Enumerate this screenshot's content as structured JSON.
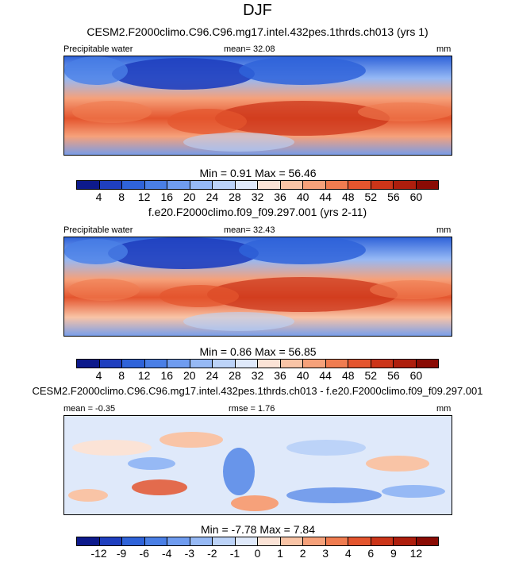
{
  "title": "DJF",
  "panels": [
    {
      "subtitle": "CESM2.F2000climo.C96.C96.mg17.intel.432pes.1thrds.ch013 (yrs 1)",
      "left_label": "Precipitable water",
      "center_label": "mean=  32.08",
      "right_label": "mm",
      "minmax": "Min =   0.91 Max =  56.46",
      "cbar_key": "full"
    },
    {
      "subtitle": "f.e20.F2000climo.f09_f09.297.001 (yrs 2-11)",
      "left_label": "Precipitable water",
      "center_label": "mean=  32.43",
      "right_label": "mm",
      "minmax": "Min =   0.86 Max =  56.85",
      "cbar_key": "full"
    },
    {
      "subtitle": "CESM2.F2000climo.C96.C96.mg17.intel.432pes.1thrds.ch013 - f.e20.F2000climo.f09_f09.297.001",
      "left_label": "mean =  -0.35",
      "center_label": "rmse =   1.76",
      "right_label": "mm",
      "minmax": "Min =  -7.78 Max =   7.84",
      "cbar_key": "diff"
    }
  ],
  "colorbars": {
    "full": {
      "ticks": [
        "4",
        "8",
        "12",
        "16",
        "20",
        "24",
        "28",
        "32",
        "36",
        "40",
        "44",
        "48",
        "52",
        "56",
        "60"
      ],
      "colors": [
        "#0d1a8c",
        "#1f3fbf",
        "#2f63d9",
        "#4a7fe6",
        "#6f9cf0",
        "#96b9f5",
        "#bcd3f8",
        "#dfe9fa",
        "#fbe3d6",
        "#f9c4a6",
        "#f6a17a",
        "#f07c50",
        "#e4552e",
        "#cc3519",
        "#ae1e0d",
        "#8a0b04"
      ]
    },
    "diff": {
      "ticks": [
        "-12",
        "-9",
        "-6",
        "-4",
        "-3",
        "-2",
        "-1",
        "0",
        "1",
        "2",
        "3",
        "4",
        "6",
        "9",
        "12"
      ],
      "colors": [
        "#0d1a8c",
        "#1f3fbf",
        "#2f63d9",
        "#4a7fe6",
        "#6f9cf0",
        "#96b9f5",
        "#bcd3f8",
        "#dfe9fa",
        "#fbe3d6",
        "#f9c4a6",
        "#f6a17a",
        "#f07c50",
        "#e4552e",
        "#cc3519",
        "#ae1e0d",
        "#8a0b04"
      ]
    }
  },
  "chart_data": [
    {
      "type": "heatmap",
      "title": "CESM2.F2000climo.C96.C96.mg17.intel.432pes.1thrds.ch013 (yrs 1)",
      "variable": "Precipitable water",
      "units": "mm",
      "mean": 32.08,
      "min": 0.91,
      "max": 56.46,
      "levels": [
        4,
        8,
        12,
        16,
        20,
        24,
        28,
        32,
        36,
        40,
        44,
        48,
        52,
        56,
        60
      ]
    },
    {
      "type": "heatmap",
      "title": "f.e20.F2000climo.f09_f09.297.001 (yrs 2-11)",
      "variable": "Precipitable water",
      "units": "mm",
      "mean": 32.43,
      "min": 0.86,
      "max": 56.85,
      "levels": [
        4,
        8,
        12,
        16,
        20,
        24,
        28,
        32,
        36,
        40,
        44,
        48,
        52,
        56,
        60
      ]
    },
    {
      "type": "heatmap",
      "title": "CESM2.F2000climo.C96.C96.mg17.intel.432pes.1thrds.ch013 - f.e20.F2000climo.f09_f09.297.001",
      "units": "mm",
      "mean": -0.35,
      "rmse": 1.76,
      "min": -7.78,
      "max": 7.84,
      "levels": [
        -12,
        -9,
        -6,
        -4,
        -3,
        -2,
        -1,
        0,
        1,
        2,
        3,
        4,
        6,
        9,
        12
      ]
    }
  ]
}
